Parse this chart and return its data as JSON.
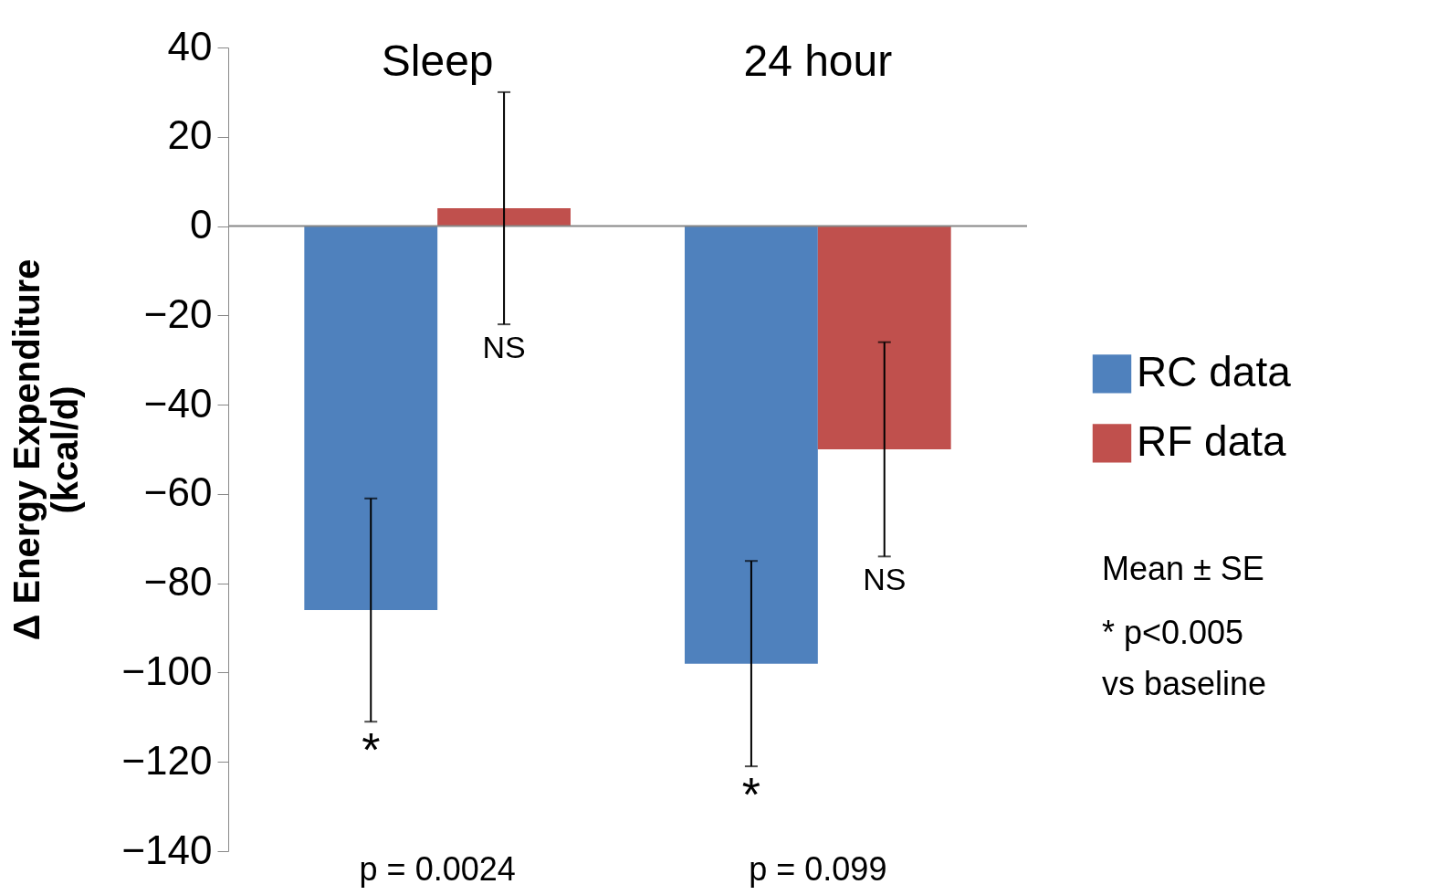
{
  "chart_data": {
    "type": "bar",
    "categories": [
      "Sleep",
      "24 hour"
    ],
    "ylabel": "Δ Energy Expenditure (kcal/d)",
    "ylim": [
      -140,
      40
    ],
    "yticks": [
      -140,
      -120,
      -100,
      -80,
      -60,
      -40,
      -20,
      0,
      20,
      40
    ],
    "series": [
      {
        "name": "RC data",
        "color": "#4f81bd",
        "values": [
          -86,
          -98
        ],
        "errors": [
          25,
          23
        ],
        "value_labels": [
          "*",
          "*"
        ]
      },
      {
        "name": "RF data",
        "color": "#c0504d",
        "values": [
          4,
          -50
        ],
        "errors": [
          26,
          24
        ]
      }
    ],
    "annotations": [
      {
        "text": "NS",
        "x": "Sleep",
        "y": -22
      },
      {
        "text": "NS",
        "x": "24 hour",
        "y": -74
      },
      "p = 0.0024",
      "p = 0.099",
      "Mean ± SE",
      "* p<0.005",
      "vs baseline"
    ],
    "ref_lines": [
      {
        "axis": "y",
        "value": 0,
        "color": "#888888"
      }
    ],
    "legend": "right",
    "grid": false
  }
}
